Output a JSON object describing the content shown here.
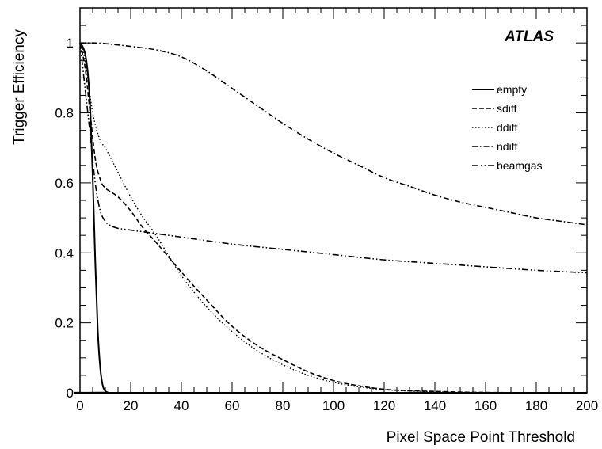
{
  "chart_data": {
    "type": "line",
    "ylabel": "Trigger Efficiency",
    "xlabel": "Pixel Space Point Threshold",
    "annotation": "ATLAS",
    "xlim": [
      0,
      200
    ],
    "ylim": [
      0,
      1.1
    ],
    "x_ticks": [
      0,
      20,
      40,
      60,
      80,
      100,
      120,
      140,
      160,
      180,
      200
    ],
    "y_ticks": [
      0,
      0.2,
      0.4,
      0.6,
      0.8,
      1
    ],
    "x_tick_labels": [
      "0",
      "20",
      "40",
      "60",
      "80",
      "100",
      "120",
      "140",
      "160",
      "180",
      "200"
    ],
    "y_tick_labels": [
      "0",
      "0.2",
      "0.4",
      "0.6",
      "0.8",
      "1"
    ],
    "legend_position": "upper-right",
    "series": [
      {
        "name": "empty",
        "dash": "solid",
        "points": [
          [
            0,
            1.0
          ],
          [
            1,
            0.99
          ],
          [
            2,
            0.97
          ],
          [
            3,
            0.92
          ],
          [
            4,
            0.82
          ],
          [
            5,
            0.62
          ],
          [
            6,
            0.38
          ],
          [
            7,
            0.18
          ],
          [
            8,
            0.07
          ],
          [
            9,
            0.02
          ],
          [
            10,
            0.005
          ],
          [
            11,
            0.001
          ],
          [
            12,
            0.0
          ],
          [
            200,
            0.0
          ]
        ]
      },
      {
        "name": "sdiff",
        "dash": "dash",
        "points": [
          [
            0,
            1.0
          ],
          [
            2,
            0.93
          ],
          [
            4,
            0.8
          ],
          [
            6,
            0.67
          ],
          [
            8,
            0.61
          ],
          [
            10,
            0.585
          ],
          [
            15,
            0.56
          ],
          [
            20,
            0.52
          ],
          [
            25,
            0.47
          ],
          [
            30,
            0.43
          ],
          [
            40,
            0.345
          ],
          [
            50,
            0.265
          ],
          [
            60,
            0.19
          ],
          [
            70,
            0.135
          ],
          [
            80,
            0.095
          ],
          [
            90,
            0.06
          ],
          [
            100,
            0.035
          ],
          [
            110,
            0.02
          ],
          [
            120,
            0.01
          ],
          [
            130,
            0.006
          ],
          [
            140,
            0.004
          ],
          [
            150,
            0.002
          ],
          [
            160,
            0.001
          ],
          [
            180,
            0.0
          ],
          [
            200,
            0.0
          ]
        ]
      },
      {
        "name": "ddiff",
        "dash": "dot",
        "points": [
          [
            0,
            1.0
          ],
          [
            2,
            0.95
          ],
          [
            5,
            0.8
          ],
          [
            8,
            0.72
          ],
          [
            10,
            0.7
          ],
          [
            15,
            0.63
          ],
          [
            20,
            0.56
          ],
          [
            25,
            0.5
          ],
          [
            30,
            0.45
          ],
          [
            40,
            0.335
          ],
          [
            50,
            0.245
          ],
          [
            60,
            0.175
          ],
          [
            70,
            0.12
          ],
          [
            80,
            0.08
          ],
          [
            90,
            0.05
          ],
          [
            100,
            0.03
          ],
          [
            110,
            0.017
          ],
          [
            120,
            0.009
          ],
          [
            130,
            0.005
          ],
          [
            140,
            0.003
          ],
          [
            150,
            0.001
          ],
          [
            170,
            0.0
          ],
          [
            200,
            0.0
          ]
        ]
      },
      {
        "name": "ndiff",
        "dash": "dashdot",
        "points": [
          [
            0,
            1.0
          ],
          [
            5,
            1.0
          ],
          [
            10,
            0.998
          ],
          [
            20,
            0.99
          ],
          [
            30,
            0.98
          ],
          [
            40,
            0.96
          ],
          [
            50,
            0.92
          ],
          [
            60,
            0.87
          ],
          [
            70,
            0.82
          ],
          [
            80,
            0.77
          ],
          [
            90,
            0.725
          ],
          [
            100,
            0.685
          ],
          [
            110,
            0.65
          ],
          [
            120,
            0.615
          ],
          [
            130,
            0.59
          ],
          [
            140,
            0.565
          ],
          [
            150,
            0.545
          ],
          [
            160,
            0.53
          ],
          [
            170,
            0.515
          ],
          [
            180,
            0.5
          ],
          [
            190,
            0.49
          ],
          [
            200,
            0.48
          ]
        ]
      },
      {
        "name": "beamgas",
        "dash": "dashdotdot",
        "points": [
          [
            0,
            1.0
          ],
          [
            2,
            0.87
          ],
          [
            4,
            0.74
          ],
          [
            6,
            0.6
          ],
          [
            8,
            0.52
          ],
          [
            10,
            0.49
          ],
          [
            12,
            0.478
          ],
          [
            15,
            0.47
          ],
          [
            20,
            0.465
          ],
          [
            30,
            0.455
          ],
          [
            40,
            0.445
          ],
          [
            60,
            0.425
          ],
          [
            80,
            0.41
          ],
          [
            100,
            0.395
          ],
          [
            120,
            0.38
          ],
          [
            140,
            0.37
          ],
          [
            160,
            0.36
          ],
          [
            180,
            0.35
          ],
          [
            200,
            0.343
          ]
        ]
      }
    ]
  }
}
